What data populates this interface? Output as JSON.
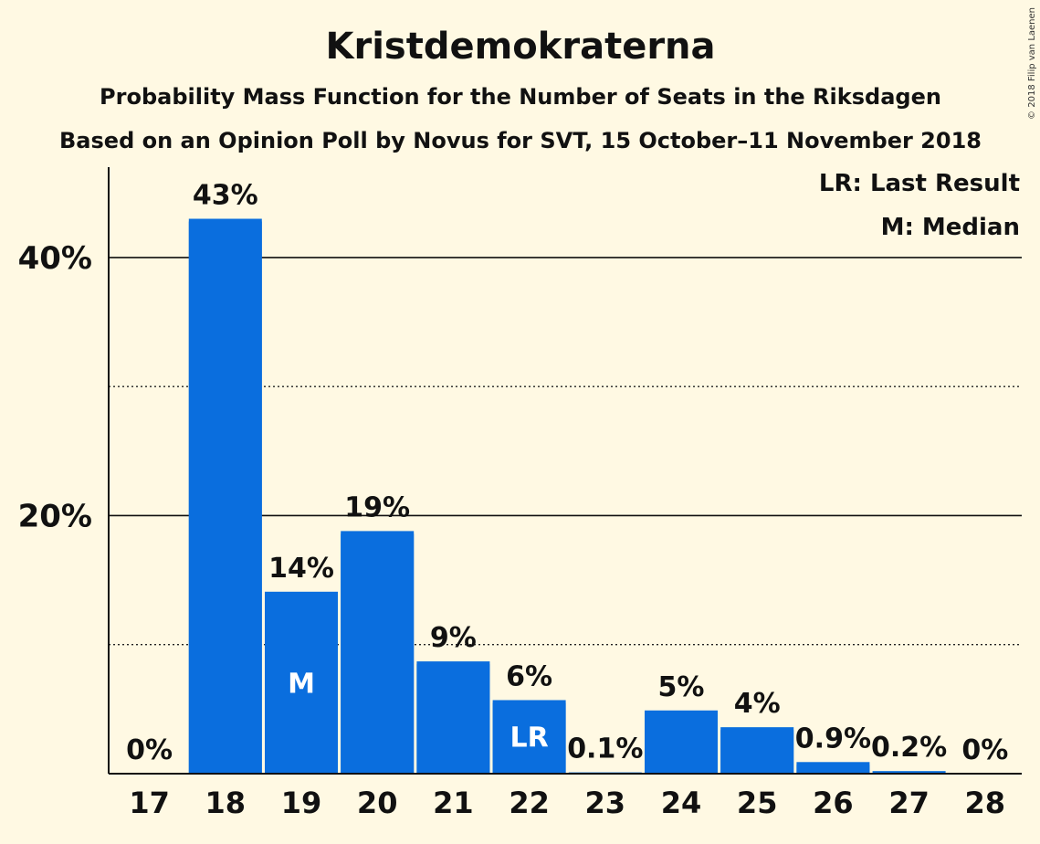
{
  "chart_data": {
    "type": "bar",
    "title": "Kristdemokraterna",
    "subtitle": "Probability Mass Function for the Number of Seats in the Riksdagen",
    "subtitle2": "Based on an Opinion Poll by Novus for SVT, 15 October–11 November 2018",
    "copyright": "© 2018 Filip van Laenen",
    "categories": [
      "17",
      "18",
      "19",
      "20",
      "21",
      "22",
      "23",
      "24",
      "25",
      "26",
      "27",
      "28"
    ],
    "values": [
      0,
      43.0,
      14.1,
      18.8,
      8.7,
      5.7,
      0.1,
      4.9,
      3.6,
      0.9,
      0.2,
      0
    ],
    "value_labels": [
      "0%",
      "43%",
      "14%",
      "19%",
      "9%",
      "6%",
      "0.1%",
      "5%",
      "4%",
      "0.9%",
      "0.2%",
      "0%"
    ],
    "ylim": [
      0,
      47
    ],
    "y_ticks": [
      {
        "value": 20,
        "label": "20%"
      },
      {
        "value": 40,
        "label": "40%"
      }
    ],
    "y_minor_gridlines": [
      10,
      30
    ],
    "median_index": 2,
    "median_marker": "M",
    "last_result_index": 5,
    "last_result_marker": "LR",
    "legend": [
      "LR: Last Result",
      "M: Median"
    ],
    "legend_position": "top-right",
    "bar_color": "#0a6ede",
    "background_color": "#fff9e3"
  }
}
